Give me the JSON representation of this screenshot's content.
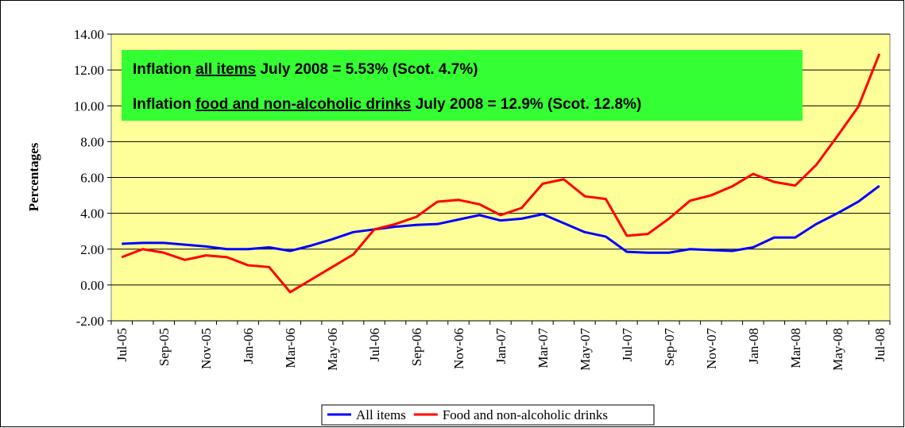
{
  "chart_data": {
    "type": "line",
    "y_label": "Percentages",
    "annotations": [
      [
        "Inflation ",
        "all items",
        " July 2008 = 5.53% (Scot. 4.7%)"
      ],
      [
        "Inflation ",
        "food and non-alcoholic drinks",
        " July 2008 = 12.9% (Scot. 12.8%)"
      ]
    ],
    "categories": [
      "Jul-05",
      null,
      "Sep-05",
      null,
      "Nov-05",
      null,
      "Jan-06",
      null,
      "Mar-06",
      null,
      "May-06",
      null,
      "Jul-06",
      null,
      "Sep-06",
      null,
      "Nov-06",
      null,
      "Jan-07",
      null,
      "Mar-07",
      null,
      "May-07",
      null,
      "Jul-07",
      null,
      "Sep-07",
      null,
      "Nov-07",
      null,
      "Jan-08",
      null,
      "Mar-08",
      null,
      "May-08",
      null,
      "Jul-08"
    ],
    "series": [
      {
        "name": "All items",
        "color": "#0000ff",
        "values": [
          2.3,
          2.35,
          2.35,
          2.25,
          2.15,
          2.0,
          2.0,
          2.1,
          1.9,
          2.2,
          2.55,
          2.95,
          3.1,
          3.25,
          3.35,
          3.4,
          3.65,
          3.9,
          3.6,
          3.7,
          3.95,
          3.45,
          2.95,
          2.7,
          1.85,
          1.8,
          1.8,
          2.0,
          1.95,
          1.9,
          2.1,
          2.65,
          2.65,
          3.4,
          4.0,
          4.65,
          5.53
        ]
      },
      {
        "name": "Food and non-alcoholic drinks",
        "color": "#ff0000",
        "values": [
          1.55,
          2.0,
          1.8,
          1.4,
          1.65,
          1.55,
          1.1,
          1.0,
          -0.4,
          0.3,
          1.0,
          1.7,
          3.1,
          3.4,
          3.8,
          4.65,
          4.75,
          4.5,
          3.9,
          4.3,
          5.65,
          5.9,
          4.95,
          4.8,
          2.75,
          2.85,
          3.7,
          4.7,
          5.0,
          5.5,
          6.2,
          5.75,
          5.55,
          6.7,
          8.3,
          9.95,
          12.9
        ]
      }
    ],
    "ylim": [
      -2,
      14
    ],
    "yticks": [
      {
        "value": -2,
        "label": "-2.00"
      },
      {
        "value": 0,
        "label": "0.00"
      },
      {
        "value": 2,
        "label": "2.00"
      },
      {
        "value": 4,
        "label": "4.00"
      },
      {
        "value": 6,
        "label": "6.00"
      },
      {
        "value": 8,
        "label": "8.00"
      },
      {
        "value": 10,
        "label": "10.00"
      },
      {
        "value": 12,
        "label": "12.00"
      },
      {
        "value": 14,
        "label": "14.00"
      }
    ],
    "grid": true,
    "legend": "bottom",
    "background": "#ffff99",
    "annotation_color": "#33ff33"
  }
}
